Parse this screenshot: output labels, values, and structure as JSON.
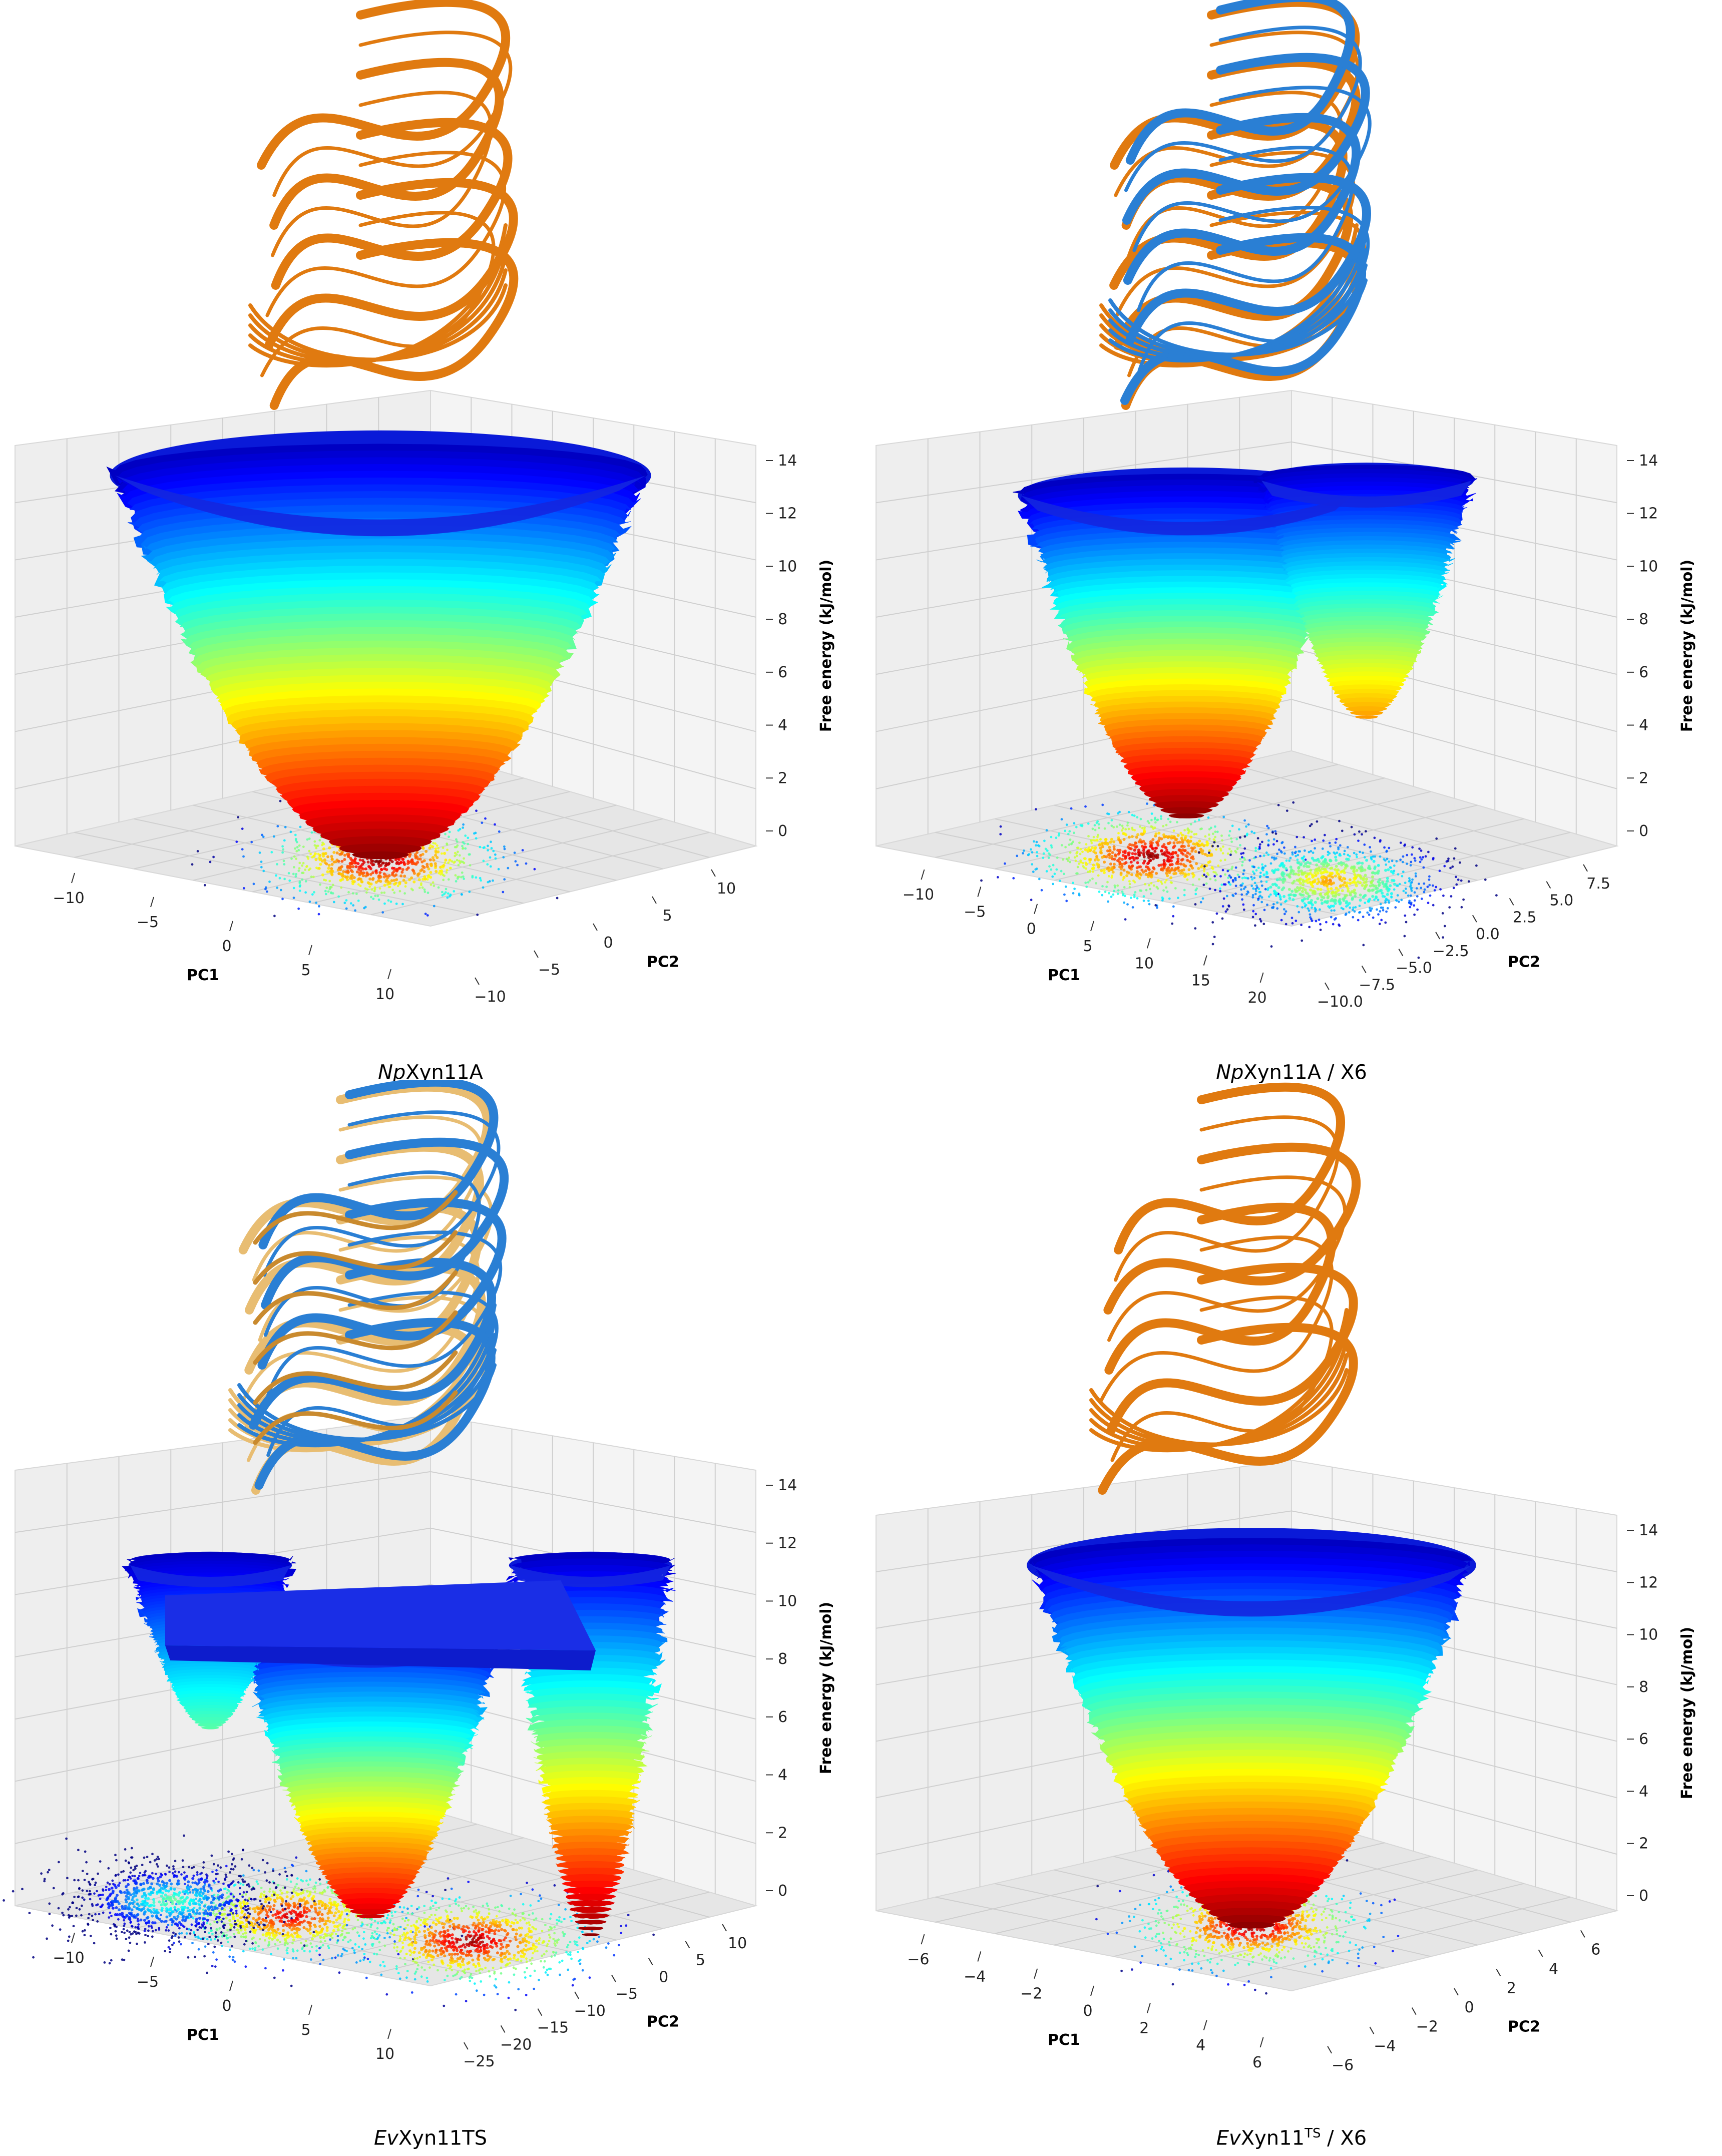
{
  "colors": {
    "jet_low": "#d40000",
    "jet_mid": "#f2f22a",
    "jet_high": "#0a1ad8",
    "ribbon_orange": "#e07a10",
    "ribbon_blue": "#2a7fd4",
    "ribbon_tan": "#e8bd72",
    "pane": "#f2f2f2",
    "grid": "#cfcfcf"
  },
  "chart_data": [
    {
      "type": "surface3d",
      "title_italic": "Np",
      "title_rest": "Xyn11A",
      "title_sup": "",
      "title_tail": "",
      "xlabel": "PC1",
      "ylabel": "PC2",
      "zlabel": "Free energy (kJ/mol)",
      "x_ticks": [
        "−10",
        "−5",
        "0",
        "5",
        "10"
      ],
      "y_ticks": [
        "−10",
        "−5",
        "0",
        "5",
        "10"
      ],
      "z_ticks": [
        "0",
        "2",
        "4",
        "6",
        "8",
        "10",
        "12",
        "14"
      ],
      "zlim": [
        0,
        15
      ],
      "minima": [
        {
          "x": 0,
          "y": 0,
          "z": 0
        }
      ],
      "rim_z": 14,
      "protein_colors": [
        "ribbon_orange"
      ]
    },
    {
      "type": "surface3d",
      "title_italic": "Np",
      "title_rest": "Xyn11A / X6",
      "title_sup": "",
      "title_tail": "",
      "xlabel": "PC1",
      "ylabel": "PC2",
      "zlabel": "Free energy (kJ/mol)",
      "x_ticks": [
        "−10",
        "−5",
        "0",
        "5",
        "10",
        "15",
        "20"
      ],
      "y_ticks": [
        "−10.0",
        "−7.5",
        "−5.0",
        "−2.5",
        "0.0",
        "2.5",
        "5.0",
        "7.5"
      ],
      "z_ticks": [
        "0",
        "2",
        "4",
        "6",
        "8",
        "10",
        "12",
        "14"
      ],
      "zlim": [
        0,
        15
      ],
      "minima": [
        {
          "x": 2,
          "y": 0,
          "z": 0
        },
        {
          "x": 15,
          "y": -3,
          "z": 4
        }
      ],
      "rim_z": 14,
      "protein_colors": [
        "ribbon_orange",
        "ribbon_blue"
      ]
    },
    {
      "type": "surface3d",
      "title_italic": "Ev",
      "title_rest": "Xyn11TS",
      "title_sup": "",
      "title_tail": "",
      "xlabel": "PC1",
      "ylabel": "PC2",
      "zlabel": "Free energy (kJ/mol)",
      "x_ticks": [
        "−10",
        "−5",
        "0",
        "5",
        "10"
      ],
      "y_ticks": [
        "−25",
        "−20",
        "−15",
        "−10",
        "−5",
        "0",
        "5",
        "10"
      ],
      "z_ticks": [
        "0",
        "2",
        "4",
        "6",
        "8",
        "10",
        "12",
        "14"
      ],
      "zlim": [
        0,
        15
      ],
      "minima": [
        {
          "x": 0,
          "y": -5,
          "z": 1
        },
        {
          "x": 8,
          "y": -12,
          "z": 0
        },
        {
          "x": -8,
          "y": 5,
          "z": 8
        }
      ],
      "rim_z": 14,
      "protein_colors": [
        "ribbon_tan",
        "ribbon_blue"
      ]
    },
    {
      "type": "surface3d",
      "title_italic": "Ev",
      "title_rest": "Xyn11",
      "title_sup": "TS",
      "title_tail": " / X6",
      "xlabel": "PC1",
      "ylabel": "PC2",
      "zlabel": "Free energy (kJ/mol)",
      "x_ticks": [
        "−6",
        "−4",
        "−2",
        "0",
        "2",
        "4",
        "6"
      ],
      "y_ticks": [
        "−6",
        "−4",
        "−2",
        "0",
        "2",
        "4",
        "6"
      ],
      "z_ticks": [
        "0",
        "2",
        "4",
        "6",
        "8",
        "10",
        "12",
        "14"
      ],
      "zlim": [
        0,
        15
      ],
      "minima": [
        {
          "x": 0,
          "y": 0,
          "z": 0
        }
      ],
      "rim_z": 14,
      "protein_colors": [
        "ribbon_orange"
      ]
    }
  ]
}
